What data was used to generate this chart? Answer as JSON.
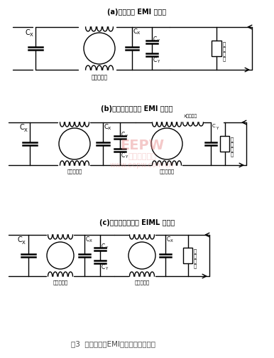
{
  "title_a": "(a)基本电源 EMI 滤波器",
  "title_b": "(b)共模增强型电源 EMI 滤波器",
  "title_c": "(c)高频增强型直流 EIML 滤波器",
  "footer": "图3  实际使用的EMI滤波器的网络结构",
  "bg_color": "#ffffff",
  "line_color": "#000000",
  "fig_width": 3.86,
  "fig_height": 5.03,
  "dpi": 100
}
